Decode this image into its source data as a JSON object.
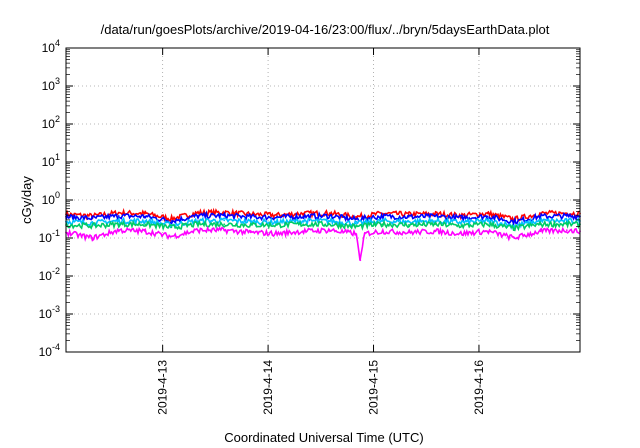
{
  "chart_data": {
    "type": "line",
    "title": "/data/run/goesPlots/archive/2019-04-16/23:00/flux/../bryn/5daysEarthData.plot",
    "xlabel": "Coordinated Universal Time (UTC)",
    "ylabel": "cGy/day",
    "yscale": "log",
    "ylim": [
      0.0001,
      10000
    ],
    "xlim": [
      "2019-04-12T02:00",
      "2019-04-16T23:00"
    ],
    "x_ticks": [
      {
        "date": "2019-04-13",
        "label": "2019-4-13"
      },
      {
        "date": "2019-04-14",
        "label": "2019-4-14"
      },
      {
        "date": "2019-04-15",
        "label": "2019-4-15"
      },
      {
        "date": "2019-04-16",
        "label": "2019-4-16"
      }
    ],
    "y_ticks": [
      {
        "value": 0.0001,
        "base": "10",
        "exp": "-4"
      },
      {
        "value": 0.001,
        "base": "10",
        "exp": "-3"
      },
      {
        "value": 0.01,
        "base": "10",
        "exp": "-2"
      },
      {
        "value": 0.1,
        "base": "10",
        "exp": "-1"
      },
      {
        "value": 1,
        "base": "10",
        "exp": "0"
      },
      {
        "value": 10,
        "base": "10",
        "exp": "1"
      },
      {
        "value": 100,
        "base": "10",
        "exp": "2"
      },
      {
        "value": 1000,
        "base": "10",
        "exp": "3"
      },
      {
        "value": 10000,
        "base": "10",
        "exp": "4"
      }
    ],
    "grid": true,
    "legend": "none",
    "series": [
      {
        "color": "#ff0000",
        "x": [
          "2019-04-12T02:00",
          "2019-04-12T08:00",
          "2019-04-12T14:00",
          "2019-04-12T20:00",
          "2019-04-13T02:00",
          "2019-04-13T08:00",
          "2019-04-13T14:00",
          "2019-04-13T20:00",
          "2019-04-14T02:00",
          "2019-04-14T08:00",
          "2019-04-14T14:00",
          "2019-04-14T20:00",
          "2019-04-15T02:00",
          "2019-04-15T08:00",
          "2019-04-15T14:00",
          "2019-04-15T20:00",
          "2019-04-16T02:00",
          "2019-04-16T08:00",
          "2019-04-16T14:00",
          "2019-04-16T20:00",
          "2019-04-16T23:00"
        ],
        "values": [
          0.42,
          0.38,
          0.46,
          0.44,
          0.32,
          0.46,
          0.47,
          0.42,
          0.4,
          0.44,
          0.45,
          0.36,
          0.44,
          0.42,
          0.43,
          0.39,
          0.44,
          0.31,
          0.44,
          0.45,
          0.44
        ]
      },
      {
        "color": "#0000ff",
        "x": [
          "2019-04-12T02:00",
          "2019-04-12T08:00",
          "2019-04-12T14:00",
          "2019-04-12T20:00",
          "2019-04-13T02:00",
          "2019-04-13T08:00",
          "2019-04-13T14:00",
          "2019-04-13T20:00",
          "2019-04-14T02:00",
          "2019-04-14T08:00",
          "2019-04-14T14:00",
          "2019-04-14T20:00",
          "2019-04-15T02:00",
          "2019-04-15T08:00",
          "2019-04-15T14:00",
          "2019-04-15T20:00",
          "2019-04-16T02:00",
          "2019-04-16T08:00",
          "2019-04-16T14:00",
          "2019-04-16T20:00",
          "2019-04-16T23:00"
        ],
        "values": [
          0.36,
          0.33,
          0.38,
          0.37,
          0.28,
          0.38,
          0.39,
          0.36,
          0.35,
          0.37,
          0.38,
          0.31,
          0.37,
          0.36,
          0.37,
          0.34,
          0.37,
          0.27,
          0.37,
          0.38,
          0.37
        ]
      },
      {
        "color": "#00bfff",
        "x": [
          "2019-04-12T02:00",
          "2019-04-12T08:00",
          "2019-04-12T14:00",
          "2019-04-12T20:00",
          "2019-04-13T02:00",
          "2019-04-13T08:00",
          "2019-04-13T14:00",
          "2019-04-13T20:00",
          "2019-04-14T02:00",
          "2019-04-14T08:00",
          "2019-04-14T14:00",
          "2019-04-14T20:00",
          "2019-04-15T02:00",
          "2019-04-15T08:00",
          "2019-04-15T14:00",
          "2019-04-15T20:00",
          "2019-04-16T02:00",
          "2019-04-16T08:00",
          "2019-04-16T14:00",
          "2019-04-16T20:00",
          "2019-04-16T23:00"
        ],
        "values": [
          0.27,
          0.25,
          0.28,
          0.28,
          0.22,
          0.28,
          0.29,
          0.27,
          0.26,
          0.28,
          0.28,
          0.24,
          0.28,
          0.27,
          0.28,
          0.26,
          0.28,
          0.21,
          0.28,
          0.28,
          0.28
        ]
      },
      {
        "color": "#00cc66",
        "x": [
          "2019-04-12T02:00",
          "2019-04-12T08:00",
          "2019-04-12T14:00",
          "2019-04-12T20:00",
          "2019-04-13T02:00",
          "2019-04-13T08:00",
          "2019-04-13T14:00",
          "2019-04-13T20:00",
          "2019-04-14T02:00",
          "2019-04-14T08:00",
          "2019-04-14T14:00",
          "2019-04-14T20:00",
          "2019-04-15T02:00",
          "2019-04-15T08:00",
          "2019-04-15T14:00",
          "2019-04-15T20:00",
          "2019-04-16T02:00",
          "2019-04-16T08:00",
          "2019-04-16T14:00",
          "2019-04-16T20:00",
          "2019-04-16T23:00"
        ],
        "values": [
          0.22,
          0.21,
          0.23,
          0.23,
          0.19,
          0.23,
          0.23,
          0.22,
          0.22,
          0.23,
          0.23,
          0.2,
          0.23,
          0.22,
          0.23,
          0.21,
          0.23,
          0.18,
          0.23,
          0.23,
          0.23
        ]
      },
      {
        "color": "#ff00ff",
        "x": [
          "2019-04-12T02:00",
          "2019-04-12T08:00",
          "2019-04-12T14:00",
          "2019-04-12T20:00",
          "2019-04-13T02:00",
          "2019-04-13T08:00",
          "2019-04-13T14:00",
          "2019-04-13T20:00",
          "2019-04-14T02:00",
          "2019-04-14T08:00",
          "2019-04-14T14:00",
          "2019-04-14T20:00",
          "2019-04-14T21:00",
          "2019-04-14T22:00",
          "2019-04-15T02:00",
          "2019-04-15T08:00",
          "2019-04-15T14:00",
          "2019-04-15T20:00",
          "2019-04-16T02:00",
          "2019-04-16T08:00",
          "2019-04-16T14:00",
          "2019-04-16T20:00",
          "2019-04-16T23:00"
        ],
        "values": [
          0.14,
          0.1,
          0.16,
          0.15,
          0.11,
          0.16,
          0.16,
          0.14,
          0.13,
          0.15,
          0.16,
          0.13,
          0.026,
          0.13,
          0.15,
          0.14,
          0.15,
          0.13,
          0.15,
          0.1,
          0.15,
          0.16,
          0.15
        ]
      }
    ]
  }
}
